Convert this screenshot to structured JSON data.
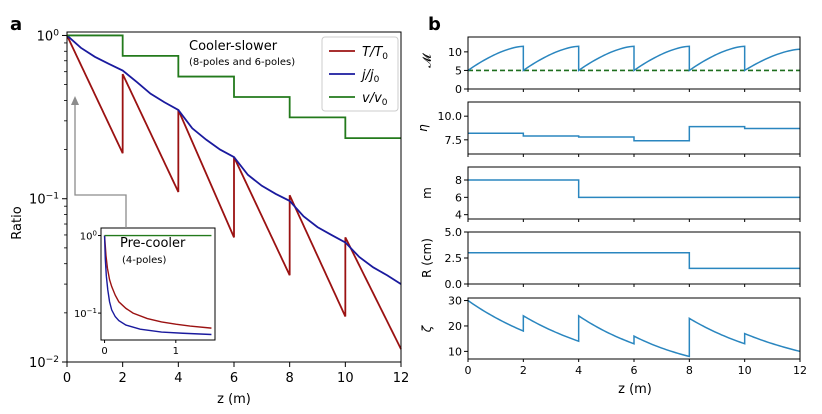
{
  "colors": {
    "red": "#9b1212",
    "blue": "#1a1a9e",
    "green": "#237a1c",
    "steel": "#2a86bf",
    "dashed": "#1e6e1e",
    "frame": "#000000",
    "inset_arrow": "#8c8c8c"
  },
  "chart_data": [
    {
      "panel": "a",
      "type": "line",
      "panel_label": "a",
      "xlabel": "z (m)",
      "ylabel": "Ratio",
      "xlim": [
        0,
        12
      ],
      "ylim": [
        0.01,
        1.05
      ],
      "yscale": "log",
      "x_ticks": [
        "0",
        "2",
        "4",
        "6",
        "8",
        "10",
        "12"
      ],
      "y_ticks": [
        {
          "base": "10",
          "exp": "0"
        },
        {
          "base": "10",
          "exp": "−1"
        },
        {
          "base": "10",
          "exp": "−2"
        }
      ],
      "annotation_title": "Cooler-slower",
      "annotation_subtitle": "(8-poles and 6-poles)",
      "legend": [
        {
          "series": "T",
          "label_main": "T/T",
          "label_sub": "0"
        },
        {
          "series": "j",
          "label_main": "j/j",
          "label_sub": "0"
        },
        {
          "series": "v",
          "label_main": "v/v",
          "label_sub": "0"
        }
      ],
      "series": [
        {
          "name": "T/T0",
          "color_key": "red",
          "segments": [
            {
              "z0": 0,
              "z1": 2,
              "start": 1.0,
              "end": 0.19
            },
            {
              "z0": 2,
              "z1": 4,
              "start": 0.58,
              "end": 0.11
            },
            {
              "z0": 4,
              "z1": 6,
              "start": 0.35,
              "end": 0.058
            },
            {
              "z0": 6,
              "z1": 8,
              "start": 0.18,
              "end": 0.034
            },
            {
              "z0": 8,
              "z1": 10,
              "start": 0.105,
              "end": 0.019
            },
            {
              "z0": 10,
              "z1": 12,
              "start": 0.058,
              "end": 0.012
            }
          ]
        },
        {
          "name": "j/j0",
          "color_key": "blue",
          "points": [
            [
              0,
              1.0
            ],
            [
              0.5,
              0.84
            ],
            [
              1,
              0.74
            ],
            [
              1.5,
              0.67
            ],
            [
              2,
              0.61
            ],
            [
              2.5,
              0.52
            ],
            [
              3,
              0.44
            ],
            [
              3.5,
              0.39
            ],
            [
              4,
              0.35
            ],
            [
              4.5,
              0.27
            ],
            [
              5,
              0.23
            ],
            [
              5.5,
              0.2
            ],
            [
              6,
              0.18
            ],
            [
              6.5,
              0.14
            ],
            [
              7,
              0.12
            ],
            [
              7.5,
              0.107
            ],
            [
              8,
              0.097
            ],
            [
              8.5,
              0.078
            ],
            [
              9,
              0.067
            ],
            [
              9.5,
              0.06
            ],
            [
              10,
              0.054
            ],
            [
              10.5,
              0.044
            ],
            [
              11,
              0.038
            ],
            [
              11.5,
              0.034
            ],
            [
              12,
              0.03
            ]
          ]
        },
        {
          "name": "v/v0",
          "color_key": "green",
          "steps": [
            [
              0,
              1.0
            ],
            [
              2,
              0.75
            ],
            [
              4,
              0.56
            ],
            [
              6,
              0.42
            ],
            [
              8,
              0.315
            ],
            [
              10,
              0.235
            ],
            [
              12,
              0.235
            ]
          ]
        }
      ]
    },
    {
      "panel": "a-inset",
      "type": "line",
      "title": "Pre-cooler",
      "subtitle": "(4-poles)",
      "yscale": "log",
      "xlim": [
        -0.05,
        1.55
      ],
      "ylim": [
        0.045,
        1.25
      ],
      "x_ticks": [
        "0",
        "1"
      ],
      "y_ticks": [
        {
          "base": "10",
          "exp": "0"
        },
        {
          "base": "10",
          "exp": "−1"
        }
      ],
      "series": [
        {
          "name": "T/T0",
          "color_key": "red",
          "points": [
            [
              0,
              1.0
            ],
            [
              0.02,
              0.55
            ],
            [
              0.04,
              0.38
            ],
            [
              0.07,
              0.27
            ],
            [
              0.1,
              0.22
            ],
            [
              0.15,
              0.17
            ],
            [
              0.2,
              0.14
            ],
            [
              0.3,
              0.115
            ],
            [
              0.4,
              0.1
            ],
            [
              0.6,
              0.085
            ],
            [
              0.8,
              0.077
            ],
            [
              1.0,
              0.072
            ],
            [
              1.2,
              0.068
            ],
            [
              1.5,
              0.064
            ]
          ]
        },
        {
          "name": "j/j0",
          "color_key": "blue",
          "points": [
            [
              0,
              1.0
            ],
            [
              0.01,
              0.5
            ],
            [
              0.025,
              0.3
            ],
            [
              0.045,
              0.2
            ],
            [
              0.07,
              0.14
            ],
            [
              0.1,
              0.11
            ],
            [
              0.15,
              0.09
            ],
            [
              0.2,
              0.08
            ],
            [
              0.3,
              0.07
            ],
            [
              0.5,
              0.062
            ],
            [
              0.8,
              0.057
            ],
            [
              1.1,
              0.055
            ],
            [
              1.5,
              0.053
            ]
          ]
        },
        {
          "name": "v/v0",
          "color_key": "green",
          "points": [
            [
              0,
              1.0
            ],
            [
              1.5,
              1.0
            ]
          ]
        }
      ]
    },
    {
      "panel": "b",
      "type": "line",
      "panel_label": "b",
      "xlabel": "z (m)",
      "xlim": [
        0,
        12
      ],
      "x_ticks": [
        "0",
        "2",
        "4",
        "6",
        "8",
        "10",
        "12"
      ],
      "subplots": [
        {
          "ylabel": "𝓜",
          "ylim": [
            0,
            14
          ],
          "y_ticks": [
            {
              "v": 0,
              "label": "0"
            },
            {
              "v": 5,
              "label": "5"
            },
            {
              "v": 10,
              "label": "10"
            }
          ],
          "dashed_level": 5.0,
          "sawtooth": [
            [
              0,
              2,
              5.0,
              11.5
            ],
            [
              2,
              4,
              5.0,
              11.5
            ],
            [
              4,
              6,
              5.0,
              11.5
            ],
            [
              6,
              8,
              5.0,
              11.5
            ],
            [
              8,
              10,
              5.0,
              11.5
            ],
            [
              10,
              12,
              5.0,
              10.7
            ]
          ]
        },
        {
          "ylabel": "η",
          "ylim": [
            6.0,
            11.5
          ],
          "y_ticks": [
            {
              "v": 7.5,
              "label": "7.5"
            },
            {
              "v": 10.0,
              "label": "10.0"
            }
          ],
          "steps": [
            [
              0,
              8.2
            ],
            [
              2,
              7.9
            ],
            [
              4,
              7.8
            ],
            [
              6,
              7.4
            ],
            [
              8,
              8.9
            ],
            [
              10,
              8.7
            ],
            [
              12,
              8.7
            ]
          ]
        },
        {
          "ylabel": "m",
          "ylim": [
            3.5,
            9.5
          ],
          "y_ticks": [
            {
              "v": 4,
              "label": "4"
            },
            {
              "v": 6,
              "label": "6"
            },
            {
              "v": 8,
              "label": "8"
            }
          ],
          "steps": [
            [
              0,
              8
            ],
            [
              4,
              6
            ],
            [
              12,
              6
            ]
          ]
        },
        {
          "ylabel": "R (cm)",
          "ylim": [
            0,
            5
          ],
          "y_ticks": [
            {
              "v": 0,
              "label": "0.0"
            },
            {
              "v": 2.5,
              "label": "2.5"
            },
            {
              "v": 5.0,
              "label": "5.0"
            }
          ],
          "steps": [
            [
              0,
              3.0
            ],
            [
              8,
              1.5
            ],
            [
              12,
              1.5
            ]
          ]
        },
        {
          "ylabel": "ζ",
          "ylim": [
            7,
            31
          ],
          "y_ticks": [
            {
              "v": 10,
              "label": "10"
            },
            {
              "v": 20,
              "label": "20"
            },
            {
              "v": 30,
              "label": "30"
            }
          ],
          "segments": [
            [
              0,
              2,
              30,
              18
            ],
            [
              2,
              4,
              24,
              14
            ],
            [
              4,
              6,
              24,
              13
            ],
            [
              6,
              8,
              16,
              8
            ],
            [
              8,
              10,
              23,
              13
            ],
            [
              10,
              12,
              17,
              10
            ]
          ]
        }
      ]
    }
  ]
}
